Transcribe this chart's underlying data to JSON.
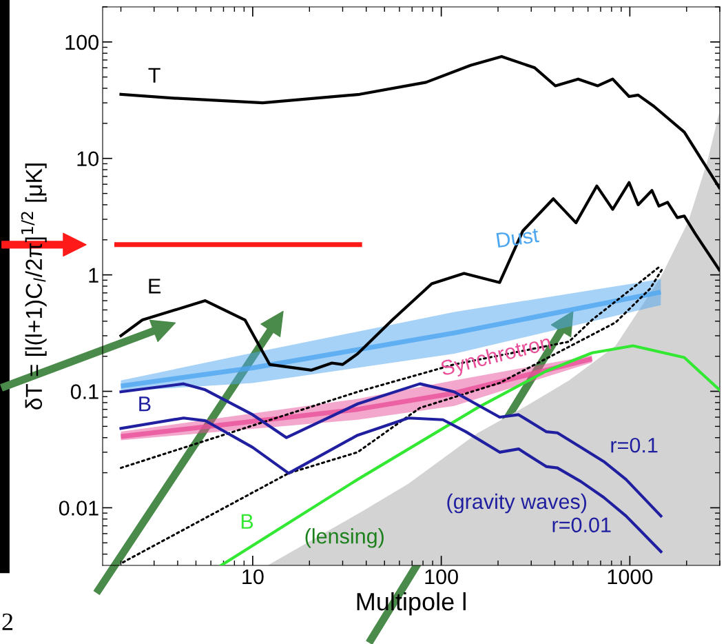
{
  "chart_data": {
    "type": "line",
    "xlabel": "Multipole l",
    "ylabel": "δT = [l(l+1)C$_{l}$/2π]$^{1/2}$ [μK]",
    "log": "xy",
    "grid": false,
    "legend": false,
    "xlim": [
      1.6,
      3000
    ],
    "xticks": [
      10,
      100,
      1000
    ],
    "ylim": [
      0.0032,
      200
    ],
    "yticks": [
      0.01,
      0.1,
      1,
      10,
      100
    ],
    "series": [
      {
        "type": "area",
        "color": "#d3d3d3",
        "x": [
          12,
          38,
          67,
          155,
          271,
          476,
          840,
          1460,
          2040,
          2570,
          2985
        ],
        "values": [
          0.0032,
          0.0093,
          0.0161,
          0.0436,
          0.072,
          0.124,
          0.246,
          0.96,
          2.86,
          9.3,
          25
        ]
      },
      {
        "name": "Dust",
        "color": "#4da6f0",
        "x": [
          2,
          10,
          117,
          1460
        ],
        "values": [
          0.111,
          0.159,
          0.317,
          0.711
        ],
        "lower": [
          0.1,
          0.118,
          0.21,
          0.55
        ],
        "upper": [
          0.124,
          0.214,
          0.48,
          0.92
        ]
      },
      {
        "name": "Synchrotron",
        "color": "#e8509a",
        "x": [
          2,
          36,
          117,
          630
        ],
        "values": [
          0.041,
          0.07,
          0.0964,
          0.19
        ],
        "lower": [
          0.038,
          0.057,
          0.075,
          0.177
        ],
        "upper": [
          0.045,
          0.086,
          0.124,
          0.203
        ]
      },
      {
        "color": "#000000",
        "line_style": "dotted",
        "x": [
          2,
          36,
          117,
          476,
          630,
          1107,
          1460
        ],
        "values": [
          0.022,
          0.099,
          0.17,
          0.267,
          0.41,
          0.84,
          1.2
        ]
      },
      {
        "color": "#000000",
        "line_style": "dotted",
        "x": [
          2.05,
          15.5,
          36,
          77,
          204,
          840,
          1280,
          1500
        ],
        "values": [
          0.0034,
          0.0198,
          0.03,
          0.072,
          0.118,
          0.39,
          0.76,
          1.15
        ]
      },
      {
        "name": "B",
        "color": "#33e833",
        "x": [
          6.8,
          36,
          155,
          360,
          631,
          1040,
          1945,
          2985
        ],
        "values": [
          0.0032,
          0.0175,
          0.072,
          0.149,
          0.214,
          0.246,
          0.195,
          0.103
        ]
      },
      {
        "name": "r=0.1",
        "color": "#1f1fa0",
        "x": [
          2,
          4.3,
          5.6,
          10,
          15.1,
          36,
          77,
          117,
          204,
          257,
          360,
          413,
          550,
          726,
          955,
          1462
        ],
        "values": [
          0.099,
          0.116,
          0.103,
          0.063,
          0.04,
          0.078,
          0.116,
          0.099,
          0.06,
          0.063,
          0.045,
          0.044,
          0.033,
          0.025,
          0.0175,
          0.0085
        ]
      },
      {
        "name": "r=0.01",
        "color": "#1f1fa0",
        "x": [
          2,
          4.3,
          5.6,
          10,
          15.5,
          36,
          67,
          102,
          135,
          204,
          257,
          360,
          413,
          550,
          726,
          955,
          1462
        ],
        "values": [
          0.048,
          0.059,
          0.056,
          0.033,
          0.0198,
          0.042,
          0.059,
          0.057,
          0.045,
          0.03,
          0.032,
          0.0226,
          0.022,
          0.0168,
          0.0123,
          0.0085,
          0.0042
        ]
      },
      {
        "name": "E",
        "color": "#000000",
        "x": [
          2,
          2.6,
          5.6,
          9.1,
          12.3,
          20.5,
          26.3,
          30,
          36,
          55,
          89,
          132,
          204,
          271,
          393,
          518,
          668,
          811,
          991,
          1107,
          1310,
          1426,
          1585,
          1786,
          1945,
          2222,
          2985
        ],
        "values": [
          0.3,
          0.41,
          0.6,
          0.41,
          0.17,
          0.152,
          0.175,
          0.17,
          0.21,
          0.41,
          0.84,
          1.03,
          0.86,
          2.39,
          4.5,
          2.8,
          5.8,
          3.65,
          6.2,
          4.0,
          5.3,
          3.9,
          4.2,
          3.1,
          3.2,
          2.26,
          1.1
        ]
      },
      {
        "name": "T",
        "color": "#000000",
        "x": [
          2,
          3.7,
          11.3,
          36.9,
          83,
          143,
          209,
          313,
          403,
          532,
          676,
          811,
          991,
          1107,
          1343,
          1945,
          2985
        ],
        "values": [
          35.5,
          33,
          30,
          35.5,
          45,
          63,
          75,
          60,
          42,
          48,
          42,
          48,
          34,
          35,
          28,
          16.8,
          5.6
        ]
      }
    ],
    "annotations": [
      "B",
      "(gravity waves)",
      "(lensing)",
      "2"
    ]
  }
}
